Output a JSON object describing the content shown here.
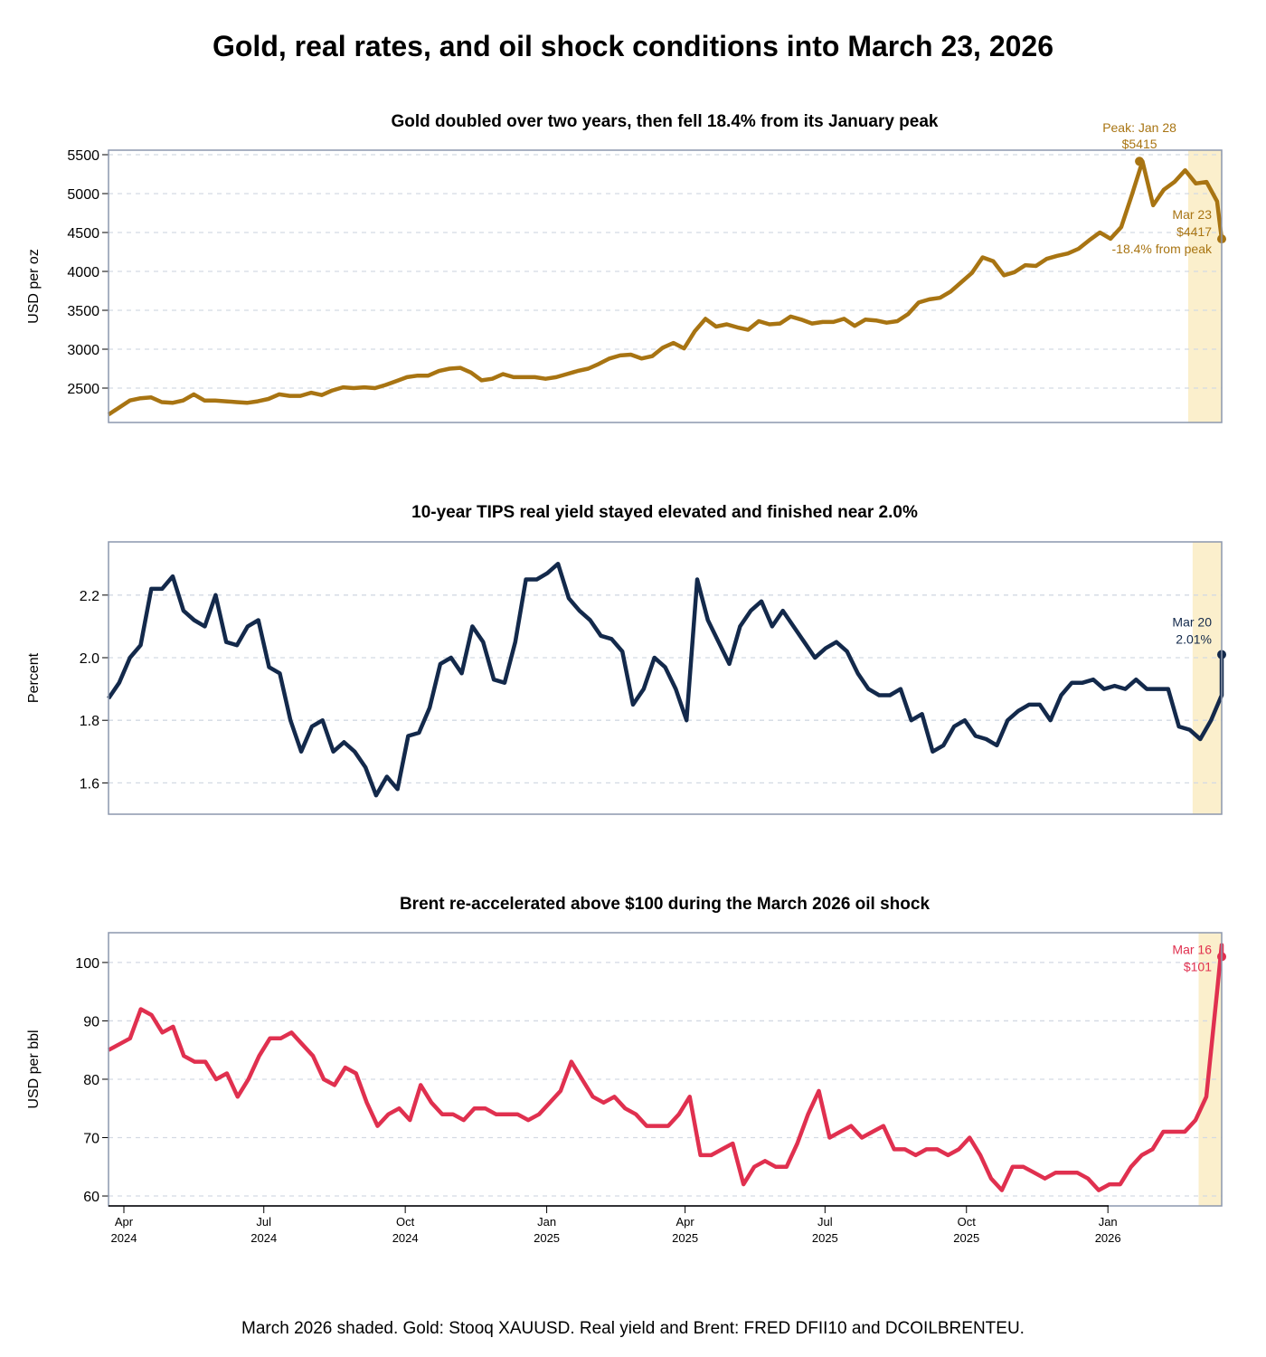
{
  "title": "Gold, real rates, and oil shock conditions into March 23, 2026",
  "footer": "March 2026 shaded. Gold: Stooq XAUUSD. Real yield and Brent: FRED DFII10 and DCOILBRENTEU.",
  "colors": {
    "gold": "#a87412",
    "real_yield": "#13294b",
    "brent": "#e0304f",
    "shade": "#fbefcc",
    "frame": "#8c97ad",
    "grid": "#d3d9e3"
  },
  "chart_data": [
    {
      "type": "line",
      "title": "Gold doubled over two years, then fell 18.4% from its January peak",
      "ylabel": "USD per oz",
      "yticks": [
        2500,
        3000,
        3500,
        4000,
        4500,
        5000,
        5500
      ],
      "ylim": [
        2058,
        5558
      ],
      "grid": true,
      "shaded_from": "2026-03-01",
      "series": {
        "start": "2024-03-22",
        "end": "2026-03-23",
        "step_days": 7,
        "values": [
          2160,
          2250,
          2340,
          2370,
          2380,
          2320,
          2310,
          2340,
          2420,
          2340,
          2340,
          2330,
          2320,
          2310,
          2330,
          2360,
          2420,
          2400,
          2400,
          2440,
          2410,
          2470,
          2510,
          2500,
          2510,
          2500,
          2540,
          2590,
          2640,
          2660,
          2660,
          2720,
          2750,
          2760,
          2700,
          2600,
          2620,
          2680,
          2640,
          2640,
          2640,
          2620,
          2640,
          2680,
          2720,
          2750,
          2810,
          2880,
          2920,
          2930,
          2880,
          2910,
          3020,
          3080,
          3010,
          3230,
          3390,
          3290,
          3320,
          3280,
          3250,
          3360,
          3320,
          3330,
          3420,
          3380,
          3330,
          3350,
          3350,
          3390,
          3300,
          3380,
          3370,
          3340,
          3360,
          3450,
          3600,
          3640,
          3660,
          3740,
          3860,
          3980,
          4180,
          4130,
          3950,
          3990,
          4080,
          4070,
          4160,
          4200,
          4230,
          4290,
          4400,
          4500,
          4420,
          4570,
          4980,
          5415,
          4850,
          5050,
          5150,
          5300,
          5130,
          5150,
          4900,
          4417
        ]
      },
      "annotations": [
        {
          "date": "2026-01-28",
          "value": 5415,
          "lines": [
            "Peak: Jan 28",
            "$5415"
          ]
        },
        {
          "date": "2026-03-23",
          "value": 4417,
          "lines": [
            "Mar 23",
            "$4417",
            "-18.4% from peak"
          ]
        }
      ]
    },
    {
      "type": "line",
      "title": "10-year TIPS real yield stayed elevated and finished near 2.0%",
      "ylabel": "Percent",
      "yticks": [
        1.6,
        1.8,
        2.0,
        2.2
      ],
      "ylim": [
        1.5,
        2.37
      ],
      "grid": true,
      "shaded_from": "2026-03-01",
      "series": {
        "start": "2024-03-22",
        "end": "2026-03-20",
        "step_days": 7,
        "values": [
          1.87,
          1.92,
          2.0,
          2.04,
          2.22,
          2.22,
          2.26,
          2.15,
          2.12,
          2.1,
          2.2,
          2.05,
          2.04,
          2.1,
          2.12,
          1.97,
          1.95,
          1.8,
          1.7,
          1.78,
          1.8,
          1.7,
          1.73,
          1.7,
          1.65,
          1.56,
          1.62,
          1.58,
          1.75,
          1.76,
          1.84,
          1.98,
          2.0,
          1.95,
          2.1,
          2.05,
          1.93,
          1.92,
          2.05,
          2.25,
          2.25,
          2.27,
          2.3,
          2.19,
          2.15,
          2.12,
          2.07,
          2.06,
          2.02,
          1.85,
          1.9,
          2.0,
          1.97,
          1.9,
          1.8,
          2.25,
          2.12,
          2.05,
          1.98,
          2.1,
          2.15,
          2.18,
          2.1,
          2.15,
          2.1,
          2.05,
          2.0,
          2.03,
          2.05,
          2.02,
          1.95,
          1.9,
          1.88,
          1.88,
          1.9,
          1.8,
          1.82,
          1.7,
          1.72,
          1.78,
          1.8,
          1.75,
          1.74,
          1.72,
          1.8,
          1.83,
          1.85,
          1.85,
          1.8,
          1.88,
          1.92,
          1.92,
          1.93,
          1.9,
          1.91,
          1.9,
          1.93,
          1.9,
          1.9,
          1.9,
          1.78,
          1.77,
          1.74,
          1.8,
          1.88,
          2.01
        ]
      },
      "annotations": [
        {
          "date": "2026-03-20",
          "value": 2.01,
          "lines": [
            "Mar 20",
            "2.01%"
          ]
        }
      ]
    },
    {
      "type": "line",
      "title": "Brent re-accelerated above $100 during the March 2026 oil shock",
      "ylabel": "USD per bbl",
      "yticks": [
        60,
        70,
        80,
        90,
        100
      ],
      "ylim": [
        58.3,
        105.1
      ],
      "grid": true,
      "shaded_from": "2026-03-01",
      "xticks": [
        {
          "date": "2024-04-01",
          "label": [
            "Apr",
            "2024"
          ]
        },
        {
          "date": "2024-07-01",
          "label": [
            "Jul",
            "2024"
          ]
        },
        {
          "date": "2024-10-01",
          "label": [
            "Oct",
            "2024"
          ]
        },
        {
          "date": "2025-01-01",
          "label": [
            "Jan",
            "2025"
          ]
        },
        {
          "date": "2025-04-01",
          "label": [
            "Apr",
            "2025"
          ]
        },
        {
          "date": "2025-07-01",
          "label": [
            "Jul",
            "2025"
          ]
        },
        {
          "date": "2025-10-01",
          "label": [
            "Oct",
            "2025"
          ]
        },
        {
          "date": "2026-01-01",
          "label": [
            "Jan",
            "2026"
          ]
        }
      ],
      "series": {
        "start": "2024-03-22",
        "end": "2026-03-16",
        "step_days": 7,
        "values": [
          85,
          86,
          87,
          92,
          91,
          88,
          89,
          84,
          83,
          83,
          80,
          81,
          77,
          80,
          84,
          87,
          87,
          88,
          86,
          84,
          80,
          79,
          82,
          81,
          76,
          72,
          74,
          75,
          73,
          79,
          76,
          74,
          74,
          73,
          75,
          75,
          74,
          74,
          74,
          73,
          74,
          76,
          78,
          83,
          80,
          77,
          76,
          77,
          75,
          74,
          72,
          72,
          72,
          74,
          77,
          67,
          67,
          68,
          69,
          62,
          65,
          66,
          65,
          65,
          69,
          74,
          78,
          70,
          71,
          72,
          70,
          71,
          72,
          68,
          68,
          67,
          68,
          68,
          67,
          68,
          70,
          67,
          63,
          61,
          65,
          65,
          64,
          63,
          64,
          64,
          64,
          63,
          61,
          62,
          62,
          65,
          67,
          68,
          71,
          71,
          71,
          73,
          77,
          95,
          103,
          101
        ]
      },
      "annotations": [
        {
          "date": "2026-03-16",
          "value": 101,
          "lines": [
            "Mar 16",
            "$101"
          ]
        }
      ]
    }
  ]
}
